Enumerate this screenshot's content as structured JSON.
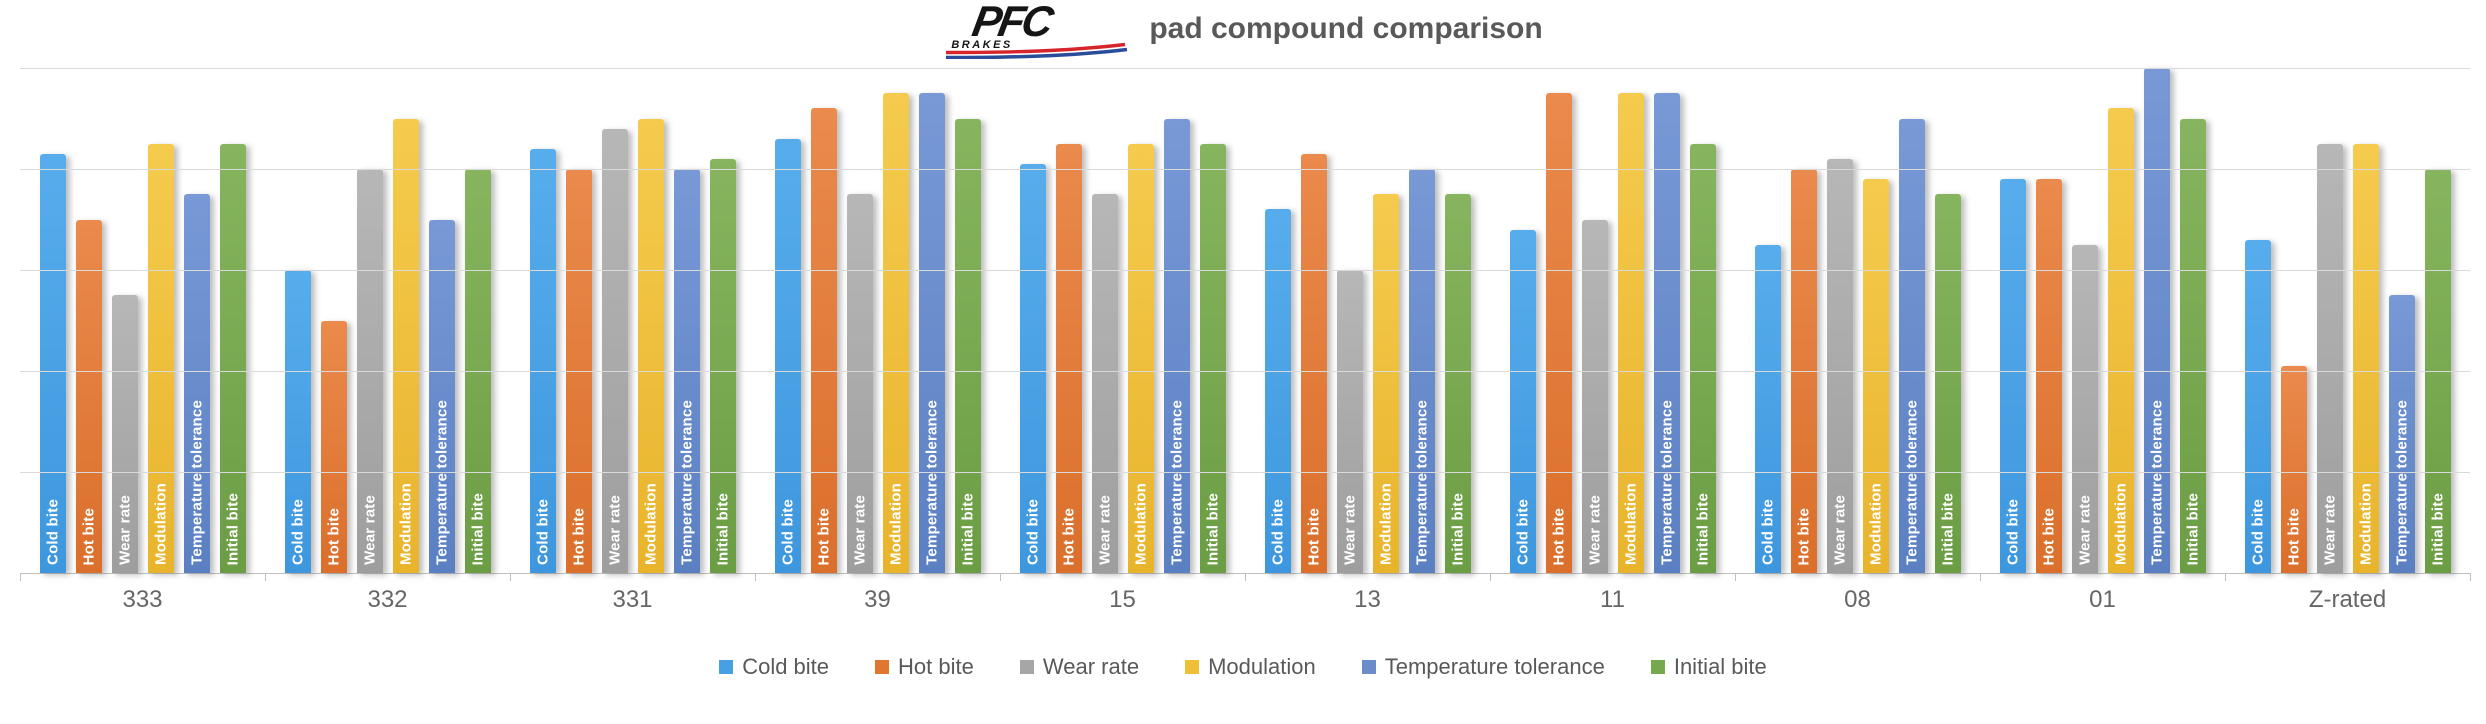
{
  "header": {
    "logo": {
      "brand": "PFC",
      "sub": "BRAKES"
    },
    "title": "pad compound comparison"
  },
  "chart_data": {
    "type": "bar",
    "title": "pad compound comparison",
    "categories": [
      "333",
      "332",
      "331",
      "39",
      "15",
      "13",
      "11",
      "08",
      "01",
      "Z-rated"
    ],
    "series": [
      {
        "name": "Cold bite",
        "color": "#47A0E4",
        "color_top": "#57ADEC",
        "color_bottom": "#3E97DE",
        "values": [
          8.3,
          6.0,
          8.4,
          8.6,
          8.1,
          7.2,
          6.8,
          6.5,
          7.8,
          6.6
        ]
      },
      {
        "name": "Hot bite",
        "color": "#E0762F",
        "color_top": "#EA8A4C",
        "color_bottom": "#DB6F2B",
        "values": [
          7.0,
          5.0,
          8.0,
          9.2,
          8.5,
          8.3,
          9.5,
          8.0,
          7.8,
          4.1
        ]
      },
      {
        "name": "Wear rate",
        "color": "#A6A6A6",
        "color_top": "#B7B7B7",
        "color_bottom": "#9E9E9E",
        "values": [
          5.5,
          8.0,
          8.8,
          7.5,
          7.5,
          6.0,
          7.0,
          8.2,
          6.5,
          8.5
        ]
      },
      {
        "name": "Modulation",
        "color": "#EFBF37",
        "color_top": "#F5CB4E",
        "color_bottom": "#E8B42C",
        "values": [
          8.5,
          9.0,
          9.0,
          9.5,
          8.5,
          7.5,
          9.5,
          7.8,
          9.2,
          8.5
        ]
      },
      {
        "name": "Temperature tolerance",
        "color": "#6A8DC9",
        "color_top": "#7899D6",
        "color_bottom": "#5B80C2",
        "values": [
          7.5,
          7.0,
          8.0,
          9.5,
          9.0,
          8.0,
          9.5,
          9.0,
          10.0,
          5.5
        ]
      },
      {
        "name": "Initial bite",
        "color": "#76A84E",
        "color_top": "#87B55F",
        "color_bottom": "#6B9D44",
        "values": [
          8.5,
          8.0,
          8.2,
          9.0,
          8.5,
          7.5,
          8.5,
          7.5,
          9.0,
          8.0
        ]
      }
    ],
    "ylim": [
      0,
      10
    ],
    "grid_step": 2,
    "grid": "horizontal gridlines, no y-axis tick labels",
    "legend_position": "bottom",
    "bar_labels": "series name repeated inside each bar, white, rotated 90° reading bottom-to-top",
    "logo_colors": {
      "red_stripe": "#D6252B",
      "blue_stripe": "#2A4D9B",
      "text": "#151515"
    }
  }
}
